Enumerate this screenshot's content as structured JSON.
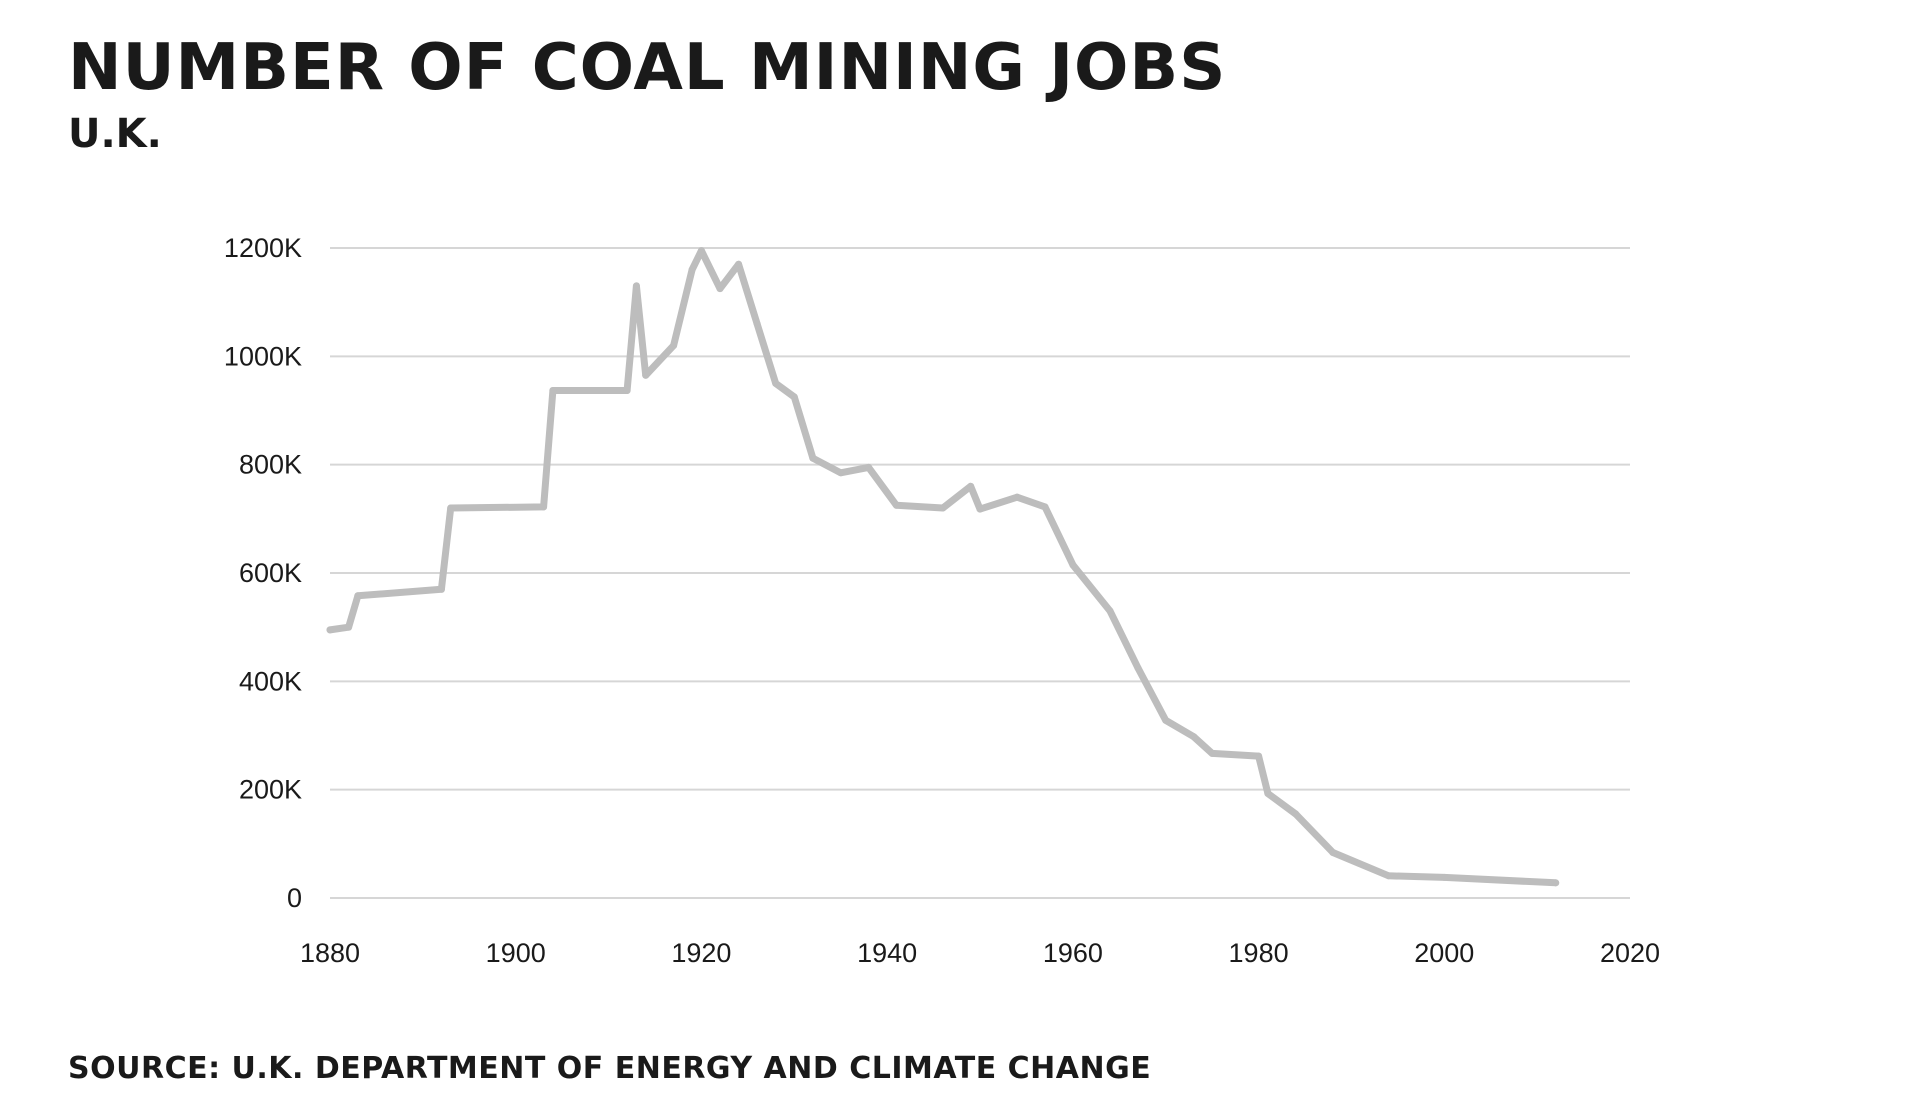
{
  "header": {
    "title": "NUMBER OF COAL MINING JOBS",
    "subtitle": "U.K."
  },
  "footer": {
    "source": "SOURCE: U.K. DEPARTMENT OF ENERGY AND CLIMATE CHANGE"
  },
  "colors": {
    "line": "#bdbdbd",
    "grid": "#d6d6d6",
    "text": "#1a1a1a"
  },
  "chart_data": {
    "type": "line",
    "title": "NUMBER OF COAL MINING JOBS",
    "subtitle": "U.K.",
    "xlabel": "",
    "ylabel": "",
    "xlim": [
      1880,
      2020
    ],
    "ylim": [
      0,
      1200000
    ],
    "grid": true,
    "legend": "none",
    "x_ticks": [
      {
        "value": 1880,
        "label": "1880"
      },
      {
        "value": 1900,
        "label": "1900"
      },
      {
        "value": 1920,
        "label": "1920"
      },
      {
        "value": 1940,
        "label": "1940"
      },
      {
        "value": 1960,
        "label": "1960"
      },
      {
        "value": 1980,
        "label": "1980"
      },
      {
        "value": 2000,
        "label": "2000"
      },
      {
        "value": 2020,
        "label": "2020"
      }
    ],
    "y_ticks": [
      {
        "value": 0,
        "label": "0"
      },
      {
        "value": 200000,
        "label": "200K"
      },
      {
        "value": 400000,
        "label": "400K"
      },
      {
        "value": 600000,
        "label": "600K"
      },
      {
        "value": 800000,
        "label": "800K"
      },
      {
        "value": 1000000,
        "label": "1000K"
      },
      {
        "value": 1200000,
        "label": "1200K"
      }
    ],
    "series": [
      {
        "values": [
          [
            1880,
            495000
          ],
          [
            1882,
            500000
          ],
          [
            1883,
            558000
          ],
          [
            1892,
            570000
          ],
          [
            1893,
            720000
          ],
          [
            1903,
            722000
          ],
          [
            1904,
            937000
          ],
          [
            1912,
            937000
          ],
          [
            1913,
            1130000
          ],
          [
            1914,
            965000
          ],
          [
            1917,
            1020000
          ],
          [
            1919,
            1160000
          ],
          [
            1920,
            1195000
          ],
          [
            1922,
            1125000
          ],
          [
            1924,
            1170000
          ],
          [
            1926,
            1060000
          ],
          [
            1928,
            950000
          ],
          [
            1930,
            925000
          ],
          [
            1932,
            812000
          ],
          [
            1935,
            785000
          ],
          [
            1938,
            795000
          ],
          [
            1941,
            725000
          ],
          [
            1946,
            720000
          ],
          [
            1949,
            760000
          ],
          [
            1950,
            718000
          ],
          [
            1954,
            740000
          ],
          [
            1957,
            722000
          ],
          [
            1960,
            615000
          ],
          [
            1964,
            530000
          ],
          [
            1967,
            425000
          ],
          [
            1970,
            328000
          ],
          [
            1973,
            298000
          ],
          [
            1975,
            267000
          ],
          [
            1980,
            262000
          ],
          [
            1981,
            193000
          ],
          [
            1984,
            155000
          ],
          [
            1988,
            84000
          ],
          [
            1994,
            41000
          ],
          [
            2000,
            38000
          ],
          [
            2012,
            28000
          ]
        ]
      }
    ]
  }
}
